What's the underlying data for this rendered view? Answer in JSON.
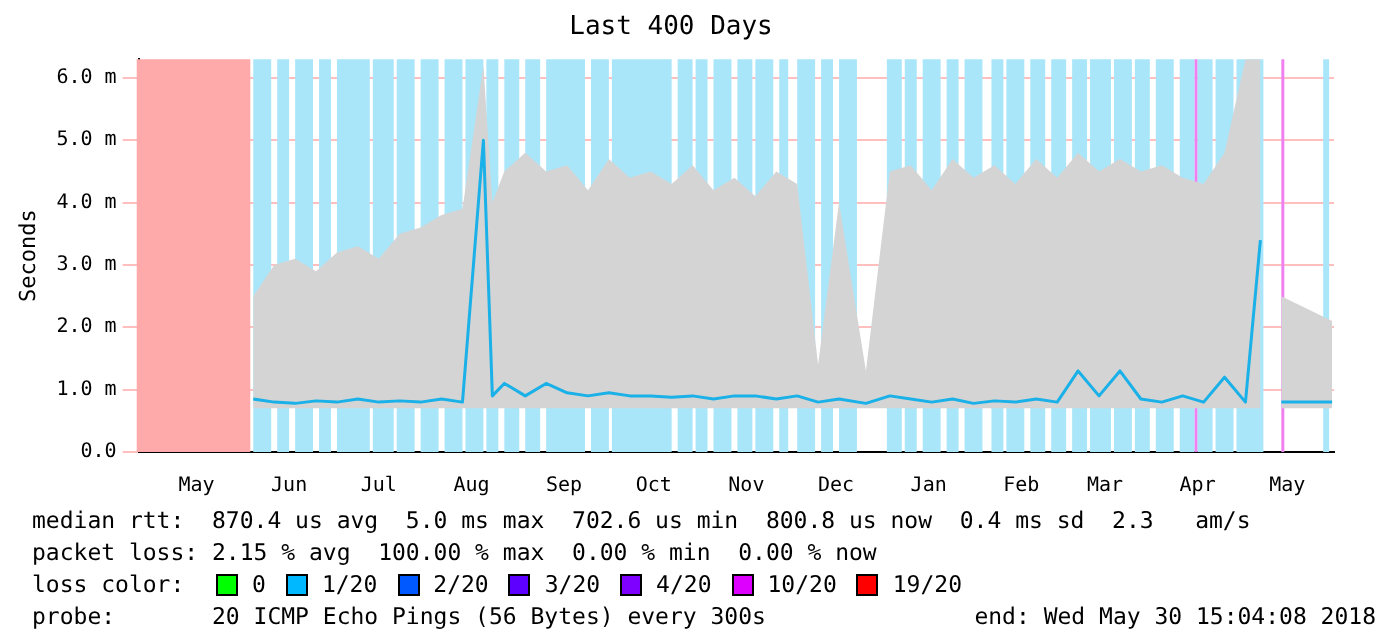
{
  "chart_data": {
    "type": "line",
    "title": "Last 400 Days",
    "ylabel": "Seconds",
    "xlim": [
      "2017-04-25T15:04",
      "2018-05-30T15:04"
    ],
    "xticks": [
      {
        "value": "2017-05-15",
        "label": "May"
      },
      {
        "value": "2017-06-15",
        "label": "Jun"
      },
      {
        "value": "2017-07-15",
        "label": "Jul"
      },
      {
        "value": "2017-08-15",
        "label": "Aug"
      },
      {
        "value": "2017-09-15",
        "label": "Sep"
      },
      {
        "value": "2017-10-15",
        "label": "Oct"
      },
      {
        "value": "2017-11-15",
        "label": "Nov"
      },
      {
        "value": "2017-12-15",
        "label": "Dec"
      },
      {
        "value": "2018-01-15",
        "label": "Jan"
      },
      {
        "value": "2018-02-15",
        "label": "Feb"
      },
      {
        "value": "2018-03-15",
        "label": "Mar"
      },
      {
        "value": "2018-04-15",
        "label": "Apr"
      },
      {
        "value": "2018-05-15",
        "label": "May"
      }
    ],
    "ylim": [
      0,
      6.3
    ],
    "yticks": [
      {
        "value": 0,
        "label": "0.0"
      },
      {
        "value": 1,
        "label": "1.0 m"
      },
      {
        "value": 2,
        "label": "2.0 m"
      },
      {
        "value": 3,
        "label": "3.0 m"
      },
      {
        "value": 4,
        "label": "4.0 m"
      },
      {
        "value": 5,
        "label": "5.0 m"
      },
      {
        "value": 6,
        "label": "6.0 m"
      }
    ],
    "grid": "y",
    "legend": false,
    "line_style": "solid",
    "marker": "none",
    "x": [
      "2017-06-03",
      "2017-06-10",
      "2017-06-17",
      "2017-06-24",
      "2017-07-01",
      "2017-07-08",
      "2017-07-15",
      "2017-07-22",
      "2017-07-29",
      "2017-08-05",
      "2017-08-12",
      "2017-08-19",
      "2017-08-22",
      "2017-08-26",
      "2017-09-02",
      "2017-09-09",
      "2017-09-16",
      "2017-09-23",
      "2017-09-30",
      "2017-10-07",
      "2017-10-14",
      "2017-10-21",
      "2017-10-28",
      "2017-11-04",
      "2017-11-11",
      "2017-11-18",
      "2017-11-25",
      "2017-12-02",
      "2017-12-09",
      "2017-12-16",
      "2017-12-25",
      "2018-01-02",
      "2018-01-09",
      "2018-01-16",
      "2018-01-23",
      "2018-01-30",
      "2018-02-06",
      "2018-02-13",
      "2018-02-20",
      "2018-02-27",
      "2018-03-06",
      "2018-03-13",
      "2018-03-20",
      "2018-03-27",
      "2018-04-03",
      "2018-04-10",
      "2018-04-17",
      "2018-04-24",
      "2018-05-01",
      "2018-05-06",
      "2018-05-09",
      "2018-05-13",
      "2018-05-30"
    ],
    "series": [
      {
        "color": "#1ab0e8",
        "values": [
          0.85,
          0.8,
          0.78,
          0.82,
          0.8,
          0.85,
          0.8,
          0.82,
          0.8,
          0.85,
          0.8,
          5.0,
          0.9,
          1.1,
          0.9,
          1.1,
          0.95,
          0.9,
          0.95,
          0.9,
          0.9,
          0.88,
          0.9,
          0.85,
          0.9,
          0.9,
          0.85,
          0.9,
          0.8,
          0.85,
          0.78,
          0.9,
          0.85,
          0.8,
          0.85,
          0.78,
          0.82,
          0.8,
          0.85,
          0.8,
          1.3,
          0.9,
          1.3,
          0.85,
          0.8,
          0.9,
          0.8,
          1.2,
          0.8,
          3.4,
          null,
          0.8,
          0.8
        ],
        "lower": [
          0.7,
          0.7,
          0.7,
          0.7,
          0.7,
          0.7,
          0.7,
          0.7,
          0.7,
          0.7,
          0.7,
          0.7,
          0.7,
          0.7,
          0.7,
          0.7,
          0.7,
          0.7,
          0.7,
          0.7,
          0.7,
          0.7,
          0.7,
          0.7,
          0.7,
          0.7,
          0.7,
          0.7,
          0.7,
          0.7,
          0.7,
          0.7,
          0.7,
          0.7,
          0.7,
          0.7,
          0.7,
          0.7,
          0.7,
          0.7,
          0.7,
          0.7,
          0.7,
          0.7,
          0.7,
          0.7,
          0.7,
          0.7,
          0.7,
          0.7,
          null,
          0.7,
          0.7
        ],
        "upper": [
          2.5,
          3.0,
          3.1,
          2.9,
          3.2,
          3.3,
          3.1,
          3.5,
          3.6,
          3.8,
          3.9,
          6.2,
          4.0,
          4.5,
          4.8,
          4.5,
          4.6,
          4.2,
          4.7,
          4.4,
          4.5,
          4.3,
          4.6,
          4.2,
          4.4,
          4.1,
          4.5,
          4.3,
          1.4,
          4.0,
          1.3,
          4.5,
          4.6,
          4.2,
          4.7,
          4.4,
          4.6,
          4.3,
          4.7,
          4.4,
          4.8,
          4.5,
          4.7,
          4.5,
          4.6,
          4.4,
          4.3,
          4.8,
          6.3,
          6.3,
          null,
          2.5,
          2.1
        ]
      }
    ],
    "bands": [
      {
        "axis": "x",
        "from": "2017-04-25",
        "to": "2017-06-02",
        "color": "#ffaaaa"
      },
      {
        "axis": "x",
        "from": "2017-06-03",
        "to": "2017-06-09",
        "color": "#aae6fa"
      },
      {
        "axis": "x",
        "from": "2017-06-11",
        "to": "2017-06-15",
        "color": "#aae6fa"
      },
      {
        "axis": "x",
        "from": "2017-06-17",
        "to": "2017-06-23",
        "color": "#aae6fa"
      },
      {
        "axis": "x",
        "from": "2017-06-25",
        "to": "2017-06-29",
        "color": "#aae6fa"
      },
      {
        "axis": "x",
        "from": "2017-07-01",
        "to": "2017-07-12",
        "color": "#aae6fa"
      },
      {
        "axis": "x",
        "from": "2017-07-13",
        "to": "2017-07-20",
        "color": "#aae6fa"
      },
      {
        "axis": "x",
        "from": "2017-07-21",
        "to": "2017-07-27",
        "color": "#aae6fa"
      },
      {
        "axis": "x",
        "from": "2017-07-29",
        "to": "2017-08-04",
        "color": "#aae6fa"
      },
      {
        "axis": "x",
        "from": "2017-08-06",
        "to": "2017-08-12",
        "color": "#aae6fa"
      },
      {
        "axis": "x",
        "from": "2017-08-13",
        "to": "2017-08-19",
        "color": "#aae6fa"
      },
      {
        "axis": "x",
        "from": "2017-08-20",
        "to": "2017-08-24",
        "color": "#aae6fa"
      },
      {
        "axis": "x",
        "from": "2017-08-26",
        "to": "2017-08-31",
        "color": "#aae6fa"
      },
      {
        "axis": "x",
        "from": "2017-09-02",
        "to": "2017-09-07",
        "color": "#aae6fa"
      },
      {
        "axis": "x",
        "from": "2017-09-09",
        "to": "2017-09-22",
        "color": "#aae6fa"
      },
      {
        "axis": "x",
        "from": "2017-09-24",
        "to": "2017-09-30",
        "color": "#aae6fa"
      },
      {
        "axis": "x",
        "from": "2017-10-01",
        "to": "2017-10-21",
        "color": "#aae6fa"
      },
      {
        "axis": "x",
        "from": "2017-10-23",
        "to": "2017-10-28",
        "color": "#aae6fa"
      },
      {
        "axis": "x",
        "from": "2017-10-29",
        "to": "2017-11-02",
        "color": "#aae6fa"
      },
      {
        "axis": "x",
        "from": "2017-11-04",
        "to": "2017-11-10",
        "color": "#aae6fa"
      },
      {
        "axis": "x",
        "from": "2017-11-12",
        "to": "2017-11-17",
        "color": "#aae6fa"
      },
      {
        "axis": "x",
        "from": "2017-11-18",
        "to": "2017-11-24",
        "color": "#aae6fa"
      },
      {
        "axis": "x",
        "from": "2017-11-26",
        "to": "2017-11-29",
        "color": "#aae6fa"
      },
      {
        "axis": "x",
        "from": "2017-12-02",
        "to": "2017-12-08",
        "color": "#aae6fa"
      },
      {
        "axis": "x",
        "from": "2017-12-10",
        "to": "2017-12-14",
        "color": "#aae6fa"
      },
      {
        "axis": "x",
        "from": "2017-12-16",
        "to": "2017-12-22",
        "color": "#aae6fa"
      },
      {
        "axis": "x",
        "from": "2018-01-01",
        "to": "2018-01-06",
        "color": "#aae6fa"
      },
      {
        "axis": "x",
        "from": "2018-01-07",
        "to": "2018-01-11",
        "color": "#aae6fa"
      },
      {
        "axis": "x",
        "from": "2018-01-13",
        "to": "2018-01-19",
        "color": "#aae6fa"
      },
      {
        "axis": "x",
        "from": "2018-01-21",
        "to": "2018-01-25",
        "color": "#aae6fa"
      },
      {
        "axis": "x",
        "from": "2018-01-27",
        "to": "2018-02-02",
        "color": "#aae6fa"
      },
      {
        "axis": "x",
        "from": "2018-02-05",
        "to": "2018-02-09",
        "color": "#aae6fa"
      },
      {
        "axis": "x",
        "from": "2018-02-10",
        "to": "2018-02-16",
        "color": "#aae6fa"
      },
      {
        "axis": "x",
        "from": "2018-02-18",
        "to": "2018-02-23",
        "color": "#aae6fa"
      },
      {
        "axis": "x",
        "from": "2018-02-25",
        "to": "2018-03-02",
        "color": "#aae6fa"
      },
      {
        "axis": "x",
        "from": "2018-03-04",
        "to": "2018-03-09",
        "color": "#aae6fa"
      },
      {
        "axis": "x",
        "from": "2018-03-10",
        "to": "2018-03-17",
        "color": "#aae6fa"
      },
      {
        "axis": "x",
        "from": "2018-03-18",
        "to": "2018-03-24",
        "color": "#aae6fa"
      },
      {
        "axis": "x",
        "from": "2018-03-25",
        "to": "2018-03-30",
        "color": "#aae6fa"
      },
      {
        "axis": "x",
        "from": "2018-04-01",
        "to": "2018-04-07",
        "color": "#aae6fa"
      },
      {
        "axis": "x",
        "from": "2018-04-09",
        "to": "2018-04-14",
        "color": "#aae6fa"
      },
      {
        "axis": "x",
        "from": "2018-04-14",
        "to": "2018-04-15",
        "color": "#f080f0"
      },
      {
        "axis": "x",
        "from": "2018-04-15",
        "to": "2018-04-20",
        "color": "#aae6fa"
      },
      {
        "axis": "x",
        "from": "2018-04-21",
        "to": "2018-04-27",
        "color": "#aae6fa"
      },
      {
        "axis": "x",
        "from": "2018-04-28",
        "to": "2018-05-07",
        "color": "#aae6fa"
      },
      {
        "axis": "x",
        "from": "2018-05-13",
        "to": "2018-05-14",
        "color": "#f080f0"
      },
      {
        "axis": "x",
        "from": "2018-05-27",
        "to": "2018-05-29",
        "color": "#aae6fa"
      }
    ],
    "annotations": [
      "median rtt:  870.4 us avg  5.0 ms max  702.6 us min  800.8 us now  0.4 ms sd  2.3   am/s",
      "packet loss: 2.15 % avg  100.00 % max  0.00 % min  0.00 % now",
      "loss color:",
      "0",
      "1/20",
      "2/20",
      "3/20",
      "4/20",
      "10/20",
      "19/20",
      "probe:       20 ICMP Echo Pings (56 Bytes) every 300s",
      "end: Wed May 30 15:04:08 2018"
    ]
  }
}
